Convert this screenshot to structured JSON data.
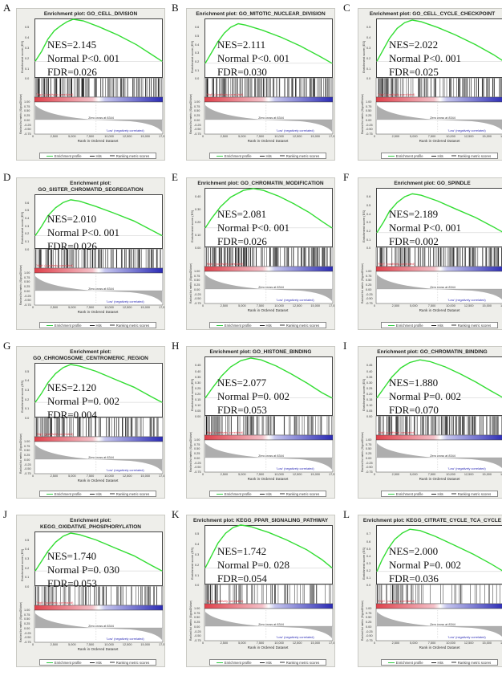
{
  "panels": [
    {
      "letter": "A",
      "title": "Enrichment plot: GO_CELL_DIVISION",
      "nes": "NES=2.145",
      "pval": "Normal P<0. 001",
      "fdr": "FDR=0.026",
      "curve": [
        [
          0,
          0
        ],
        [
          0.05,
          0.12
        ],
        [
          0.1,
          0.27
        ],
        [
          0.15,
          0.37
        ],
        [
          0.2,
          0.43
        ],
        [
          0.25,
          0.48
        ],
        [
          0.3,
          0.51
        ],
        [
          0.38,
          0.49
        ],
        [
          0.5,
          0.42
        ],
        [
          0.65,
          0.32
        ],
        [
          0.8,
          0.2
        ],
        [
          0.92,
          0.08
        ],
        [
          1,
          0
        ]
      ],
      "hits": 0.9,
      "tmin": -0.2,
      "tmax": 0.5,
      "yticks": [
        "0.5",
        "0.4",
        "0.3",
        "0.2",
        "0.1",
        "0.0"
      ]
    },
    {
      "letter": "B",
      "title": "Enrichment plot: GO_MITOTIC_NUCLEAR_DIVISION",
      "nes": "NES=2.111",
      "pval": "Normal P<0. 001",
      "fdr": "FDR=0.030",
      "curve": [
        [
          0,
          0
        ],
        [
          0.05,
          0.15
        ],
        [
          0.1,
          0.3
        ],
        [
          0.15,
          0.42
        ],
        [
          0.2,
          0.5
        ],
        [
          0.26,
          0.55
        ],
        [
          0.32,
          0.53
        ],
        [
          0.45,
          0.46
        ],
        [
          0.6,
          0.36
        ],
        [
          0.75,
          0.24
        ],
        [
          0.9,
          0.1
        ],
        [
          1,
          0
        ]
      ],
      "hits": 0.85,
      "tmin": -0.2,
      "tmax": 0.6,
      "yticks": [
        "0.6",
        "0.5",
        "0.4",
        "0.3",
        "0.2",
        "0.1",
        "0.0"
      ]
    },
    {
      "letter": "C",
      "title": "Enrichment plot: GO_CELL_CYCLE_CHECKPOINT",
      "nes": "NES=2.022",
      "pval": "Normal P<0. 001",
      "fdr": "FDR=0.025",
      "curve": [
        [
          0,
          0
        ],
        [
          0.05,
          0.14
        ],
        [
          0.1,
          0.28
        ],
        [
          0.16,
          0.4
        ],
        [
          0.22,
          0.47
        ],
        [
          0.28,
          0.5
        ],
        [
          0.35,
          0.48
        ],
        [
          0.48,
          0.41
        ],
        [
          0.62,
          0.32
        ],
        [
          0.78,
          0.2
        ],
        [
          0.92,
          0.08
        ],
        [
          1,
          0
        ]
      ],
      "hits": 0.75,
      "tmin": -0.2,
      "tmax": 0.5,
      "yticks": [
        "0.5",
        "0.4",
        "0.3",
        "0.2",
        "0.1",
        "0.0"
      ]
    },
    {
      "letter": "D",
      "title": "Enrichment plot:\nGO_SISTER_CHROMATID_SEGREGATION",
      "nes": "NES=2.010",
      "pval": "Normal P<0. 001",
      "fdr": "FDR=0.026",
      "curve": [
        [
          0,
          0
        ],
        [
          0.05,
          0.14
        ],
        [
          0.1,
          0.3
        ],
        [
          0.16,
          0.42
        ],
        [
          0.22,
          0.5
        ],
        [
          0.28,
          0.54
        ],
        [
          0.35,
          0.52
        ],
        [
          0.48,
          0.44
        ],
        [
          0.62,
          0.34
        ],
        [
          0.78,
          0.22
        ],
        [
          0.92,
          0.08
        ],
        [
          1,
          0
        ]
      ],
      "hits": 0.8,
      "tmin": -0.2,
      "tmax": 0.6,
      "yticks": [
        "0.6",
        "0.5",
        "0.4",
        "0.3",
        "0.2",
        "0.1",
        "0.0"
      ]
    },
    {
      "letter": "E",
      "title": "Enrichment plot: GO_CHROMATIN_MODIFICATION",
      "nes": "NES=2.081",
      "pval": "Normal P<0. 001",
      "fdr": "FDR=0.026",
      "curve": [
        [
          0,
          0
        ],
        [
          0.05,
          0.1
        ],
        [
          0.12,
          0.22
        ],
        [
          0.2,
          0.32
        ],
        [
          0.3,
          0.39
        ],
        [
          0.38,
          0.41
        ],
        [
          0.46,
          0.39
        ],
        [
          0.58,
          0.33
        ],
        [
          0.7,
          0.25
        ],
        [
          0.82,
          0.16
        ],
        [
          0.93,
          0.06
        ],
        [
          1,
          0
        ]
      ],
      "hits": 0.95,
      "tmin": -0.2,
      "tmax": 0.4,
      "yticks": [
        "0.40",
        "0.30",
        "0.20",
        "0.10",
        "0.00"
      ]
    },
    {
      "letter": "F",
      "title": "Enrichment plot: GO_SPINDLE",
      "nes": "NES=2.189",
      "pval": "Normal P<0. 001",
      "fdr": "FDR=0.002",
      "curve": [
        [
          0,
          0
        ],
        [
          0.05,
          0.14
        ],
        [
          0.1,
          0.3
        ],
        [
          0.16,
          0.42
        ],
        [
          0.22,
          0.5
        ],
        [
          0.28,
          0.54
        ],
        [
          0.35,
          0.52
        ],
        [
          0.48,
          0.44
        ],
        [
          0.62,
          0.33
        ],
        [
          0.78,
          0.21
        ],
        [
          0.92,
          0.08
        ],
        [
          1,
          0
        ]
      ],
      "hits": 0.85,
      "tmin": -0.2,
      "tmax": 0.6,
      "yticks": [
        "0.6",
        "0.5",
        "0.4",
        "0.3",
        "0.2",
        "0.1",
        "0.0"
      ]
    },
    {
      "letter": "G",
      "title": "Enrichment plot:\nGO_CHROMOSOME_CENTROMERIC_REGION",
      "nes": "NES=2.120",
      "pval": "Normal P=0. 002",
      "fdr": "FDR=0.004",
      "curve": [
        [
          0,
          0
        ],
        [
          0.05,
          0.12
        ],
        [
          0.1,
          0.26
        ],
        [
          0.16,
          0.38
        ],
        [
          0.22,
          0.46
        ],
        [
          0.28,
          0.5
        ],
        [
          0.35,
          0.48
        ],
        [
          0.48,
          0.41
        ],
        [
          0.62,
          0.31
        ],
        [
          0.78,
          0.2
        ],
        [
          0.92,
          0.07
        ],
        [
          1,
          0
        ]
      ],
      "hits": 0.65,
      "tmin": -0.2,
      "tmax": 0.5,
      "yticks": [
        "0.5",
        "0.4",
        "0.3",
        "0.2",
        "0.1",
        "0.0"
      ]
    },
    {
      "letter": "H",
      "title": "Enrichment plot: GO_HISTONE_BINDING",
      "nes": "NES=2.077",
      "pval": "Normal P=0. 002",
      "fdr": "FDR=0.053",
      "curve": [
        [
          0,
          0
        ],
        [
          0.06,
          0.12
        ],
        [
          0.13,
          0.25
        ],
        [
          0.2,
          0.35
        ],
        [
          0.28,
          0.42
        ],
        [
          0.36,
          0.45
        ],
        [
          0.44,
          0.43
        ],
        [
          0.56,
          0.36
        ],
        [
          0.68,
          0.27
        ],
        [
          0.8,
          0.17
        ],
        [
          0.92,
          0.06
        ],
        [
          1,
          0
        ]
      ],
      "hits": 0.6,
      "tmin": -0.2,
      "tmax": 0.45,
      "yticks": [
        "0.45",
        "0.40",
        "0.35",
        "0.30",
        "0.25",
        "0.20",
        "0.15",
        "0.10",
        "0.05",
        "0.00"
      ]
    },
    {
      "letter": "I",
      "title": "Enrichment plot: GO_CHROMATIN_BINDING",
      "nes": "NES=1.880",
      "pval": "Normal P=0. 002",
      "fdr": "FDR=0.070",
      "curve": [
        [
          0,
          0
        ],
        [
          0.06,
          0.12
        ],
        [
          0.12,
          0.24
        ],
        [
          0.19,
          0.34
        ],
        [
          0.26,
          0.4
        ],
        [
          0.34,
          0.43
        ],
        [
          0.42,
          0.41
        ],
        [
          0.54,
          0.35
        ],
        [
          0.66,
          0.27
        ],
        [
          0.78,
          0.18
        ],
        [
          0.9,
          0.08
        ],
        [
          1,
          0
        ]
      ],
      "hits": 0.9,
      "tmin": -0.2,
      "tmax": 0.45,
      "yticks": [
        "0.45",
        "0.40",
        "0.35",
        "0.30",
        "0.25",
        "0.20",
        "0.15",
        "0.10",
        "0.05",
        "0.00"
      ]
    },
    {
      "letter": "J",
      "title": "Enrichment plot:\nKEGG_OXIDATIVE_PHOSPHORYLATION",
      "nes": "NES=1.740",
      "pval": "Normal P=0. 030",
      "fdr": "FDR=0.053",
      "curve": [
        [
          0,
          0
        ],
        [
          0.05,
          0.13
        ],
        [
          0.1,
          0.26
        ],
        [
          0.16,
          0.38
        ],
        [
          0.22,
          0.46
        ],
        [
          0.28,
          0.5
        ],
        [
          0.35,
          0.48
        ],
        [
          0.48,
          0.41
        ],
        [
          0.62,
          0.31
        ],
        [
          0.78,
          0.2
        ],
        [
          0.92,
          0.07
        ],
        [
          1,
          0
        ]
      ],
      "hits": 0.45,
      "tmin": -0.2,
      "tmax": 0.5,
      "yticks": [
        "0.5",
        "0.4",
        "0.3",
        "0.2",
        "0.1",
        "0.0"
      ]
    },
    {
      "letter": "K",
      "title": "Enrichment plot: KEGG_PPAR_SIGNALING_PATHWAY",
      "nes": "NES=1.742",
      "pval": "Normal P=0. 028",
      "fdr": "FDR=0.054",
      "curve": [
        [
          0,
          0
        ],
        [
          0.05,
          0.15
        ],
        [
          0.1,
          0.3
        ],
        [
          0.16,
          0.42
        ],
        [
          0.22,
          0.49
        ],
        [
          0.28,
          0.52
        ],
        [
          0.36,
          0.5
        ],
        [
          0.5,
          0.43
        ],
        [
          0.64,
          0.34
        ],
        [
          0.8,
          0.22
        ],
        [
          0.92,
          0.1
        ],
        [
          1,
          0
        ]
      ],
      "hits": 0.35,
      "tmin": -0.2,
      "tmax": 0.5,
      "yticks": [
        "0.5",
        "0.4",
        "0.3",
        "0.2",
        "0.1",
        "0.0"
      ]
    },
    {
      "letter": "L",
      "title": "Enrichment plot: KEGG_CITRATE_CYCLE_TCA_CYCLE",
      "nes": "NES=2.000",
      "pval": "Normal P=0. 002",
      "fdr": "FDR=0.036",
      "curve": [
        [
          0,
          0
        ],
        [
          0.04,
          0.18
        ],
        [
          0.09,
          0.36
        ],
        [
          0.14,
          0.5
        ],
        [
          0.2,
          0.6
        ],
        [
          0.26,
          0.66
        ],
        [
          0.34,
          0.64
        ],
        [
          0.46,
          0.55
        ],
        [
          0.6,
          0.42
        ],
        [
          0.76,
          0.27
        ],
        [
          0.9,
          0.12
        ],
        [
          1,
          0
        ]
      ],
      "hits": 0.2,
      "tmin": -0.2,
      "tmax": 0.7,
      "yticks": [
        "0.7",
        "0.6",
        "0.5",
        "0.4",
        "0.3",
        "0.2",
        "0.1",
        "0.0"
      ]
    }
  ],
  "common": {
    "ylabel_es": "Enrichment score (ES)",
    "ylabel_rank": "Ranked list metric (Signal2Noise)",
    "xlabel": "Rank in Ordered Dataset",
    "xticks": [
      "0",
      "2,500",
      "5,000",
      "7,500",
      "10,000",
      "12,500",
      "15,000",
      "17,500"
    ],
    "rank_yticks": [
      "1.00",
      "0.75",
      "0.50",
      "0.25",
      "0.00",
      "-0.25",
      "-0.50",
      "-0.75"
    ],
    "pos_label": "'High' (positively correlated)",
    "neg_label": "'Low' (negatively correlated)",
    "zero_cross": "Zero cross at 8344",
    "legend": {
      "profile": "Enrichment profile",
      "hits": "Hits",
      "ranking": "Ranking metric scores"
    },
    "colors": {
      "curve": "#33dd33",
      "hits": "#111111",
      "high": "#e0404a",
      "low": "#2a2ab5",
      "metric": "#9a9a9a"
    }
  }
}
